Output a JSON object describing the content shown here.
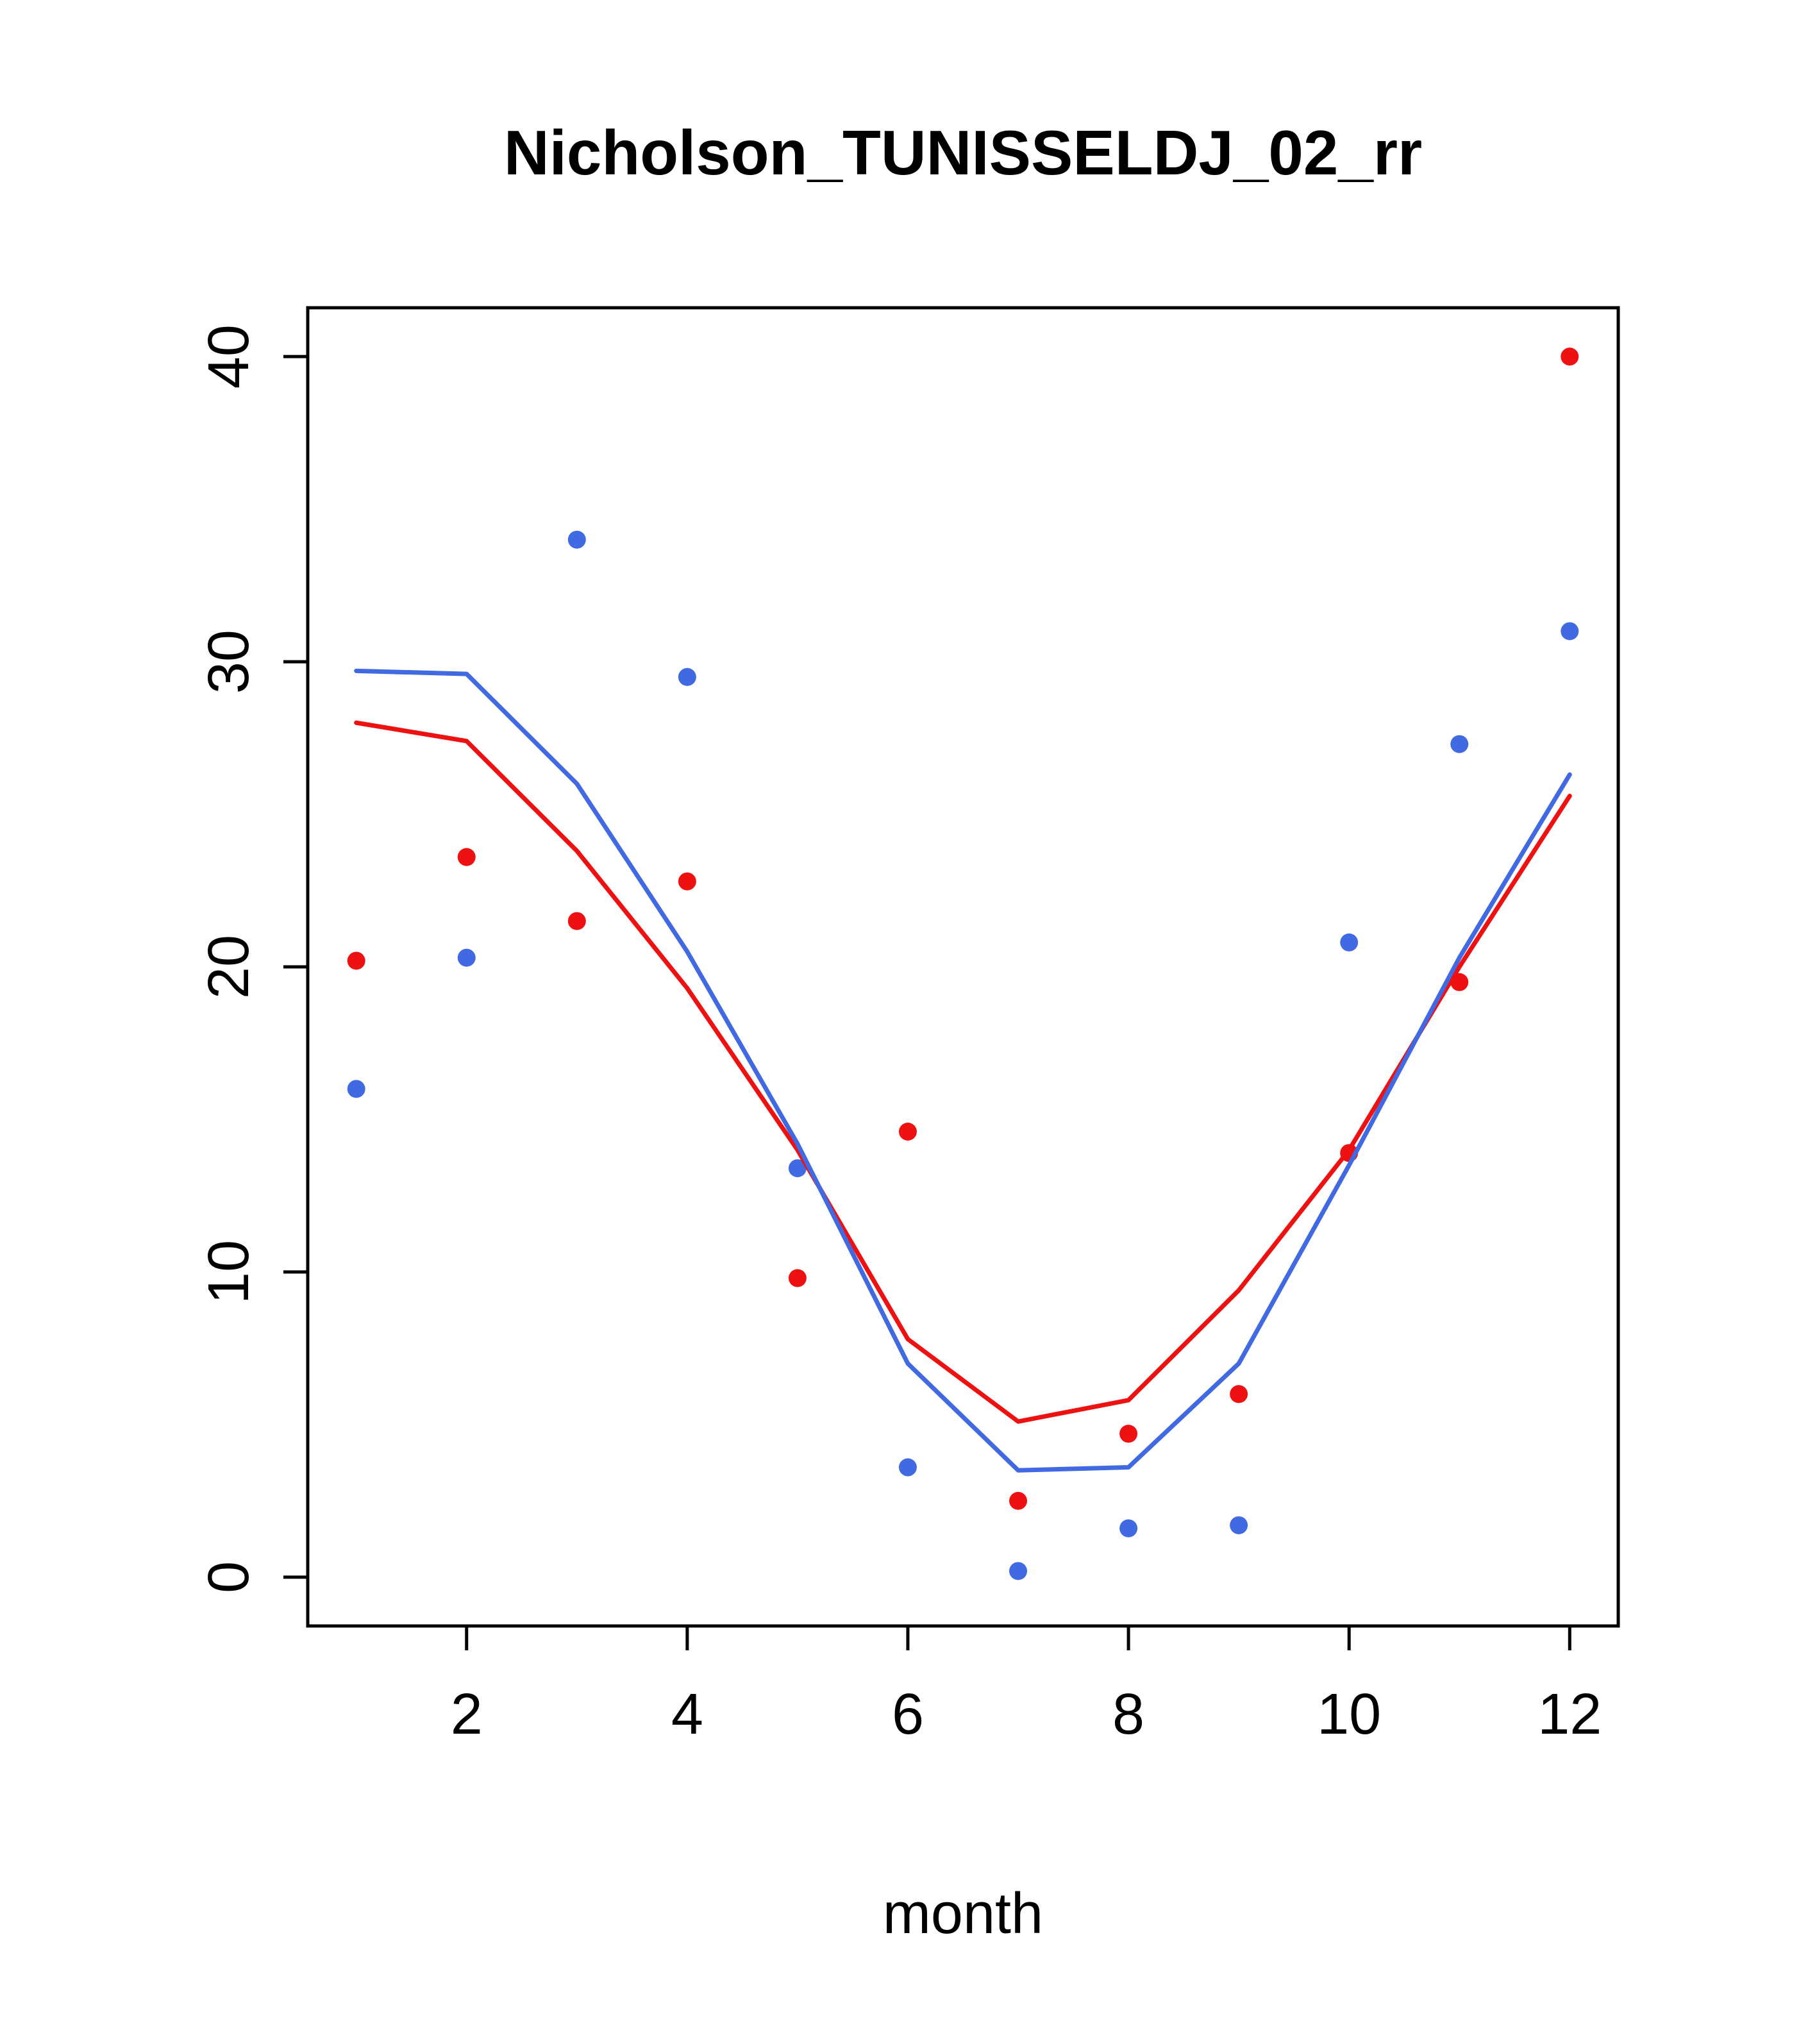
{
  "chart_data": {
    "type": "scatter",
    "title": "Nicholson_TUNISSELDJ_02_rr",
    "xlabel": "month",
    "ylabel": "",
    "xlim_data": [
      1,
      12
    ],
    "ylim_data": [
      0,
      40
    ],
    "xlim": [
      0.56,
      12.44
    ],
    "ylim": [
      -1.6,
      41.6
    ],
    "x_ticks": [
      2,
      4,
      6,
      8,
      10,
      12
    ],
    "y_ticks": [
      0,
      10,
      20,
      30,
      40
    ],
    "grid": "off",
    "legend": "none",
    "x": [
      1,
      2,
      3,
      4,
      5,
      6,
      7,
      8,
      9,
      10,
      11,
      12
    ],
    "series": [
      {
        "name": "red-points",
        "kind": "points",
        "color": "#ee1111",
        "values": [
          20.2,
          23.6,
          21.5,
          22.8,
          9.8,
          14.6,
          2.5,
          4.7,
          6.0,
          13.9,
          19.5,
          40.0
        ]
      },
      {
        "name": "blue-points",
        "kind": "points",
        "color": "#4169e1",
        "values": [
          16.0,
          20.3,
          34.0,
          29.5,
          13.4,
          3.6,
          0.2,
          1.6,
          1.7,
          20.8,
          27.3,
          31.0
        ]
      },
      {
        "name": "red-line",
        "kind": "line",
        "color": "#ee1111",
        "values": [
          28.0,
          27.4,
          23.8,
          19.3,
          14.0,
          7.8,
          5.1,
          5.8,
          9.4,
          14.0,
          20.0,
          25.6
        ]
      },
      {
        "name": "blue-line",
        "kind": "line",
        "color": "#4169e1",
        "values": [
          29.7,
          29.6,
          26.0,
          20.5,
          14.2,
          7.0,
          3.5,
          3.6,
          7.0,
          13.5,
          20.3,
          26.3
        ]
      }
    ],
    "style": {
      "point_radius": 14,
      "line_width": 7,
      "axis_color": "#000000"
    }
  }
}
